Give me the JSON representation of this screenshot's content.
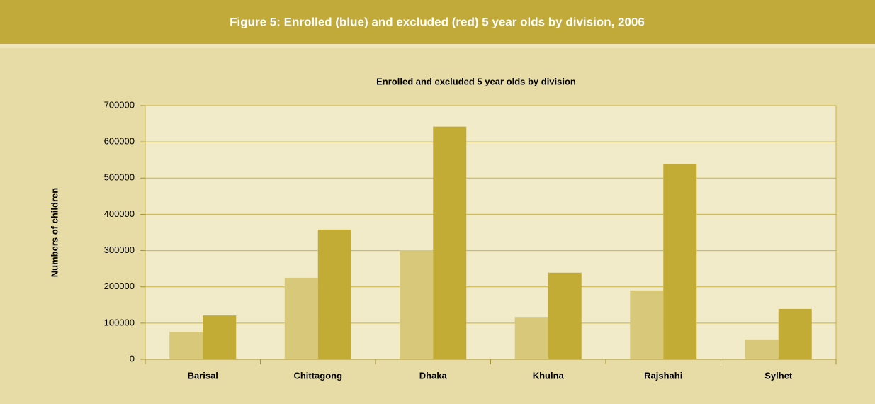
{
  "chart_data": {
    "type": "bar",
    "figure_title": "Figure 5: Enrolled (blue) and excluded (red) 5 year olds by division, 2006",
    "title": "Enrolled and excluded 5 year olds by division",
    "ylabel": "Numbers of children",
    "categories": [
      "Barisal",
      "Chittagong",
      "Dhaka",
      "Khulna",
      "Rajshahi",
      "Sylhet"
    ],
    "series": [
      {
        "color": "#d8c87a",
        "values": [
          76000,
          225000,
          301000,
          117000,
          190000,
          55000
        ]
      },
      {
        "color": "#c3ac35",
        "values": [
          121000,
          358000,
          642000,
          239000,
          538000,
          139000
        ]
      }
    ],
    "ylim": [
      0,
      700000
    ],
    "yticks": [
      0,
      100000,
      200000,
      300000,
      400000,
      500000,
      600000,
      700000
    ],
    "grid": true
  }
}
